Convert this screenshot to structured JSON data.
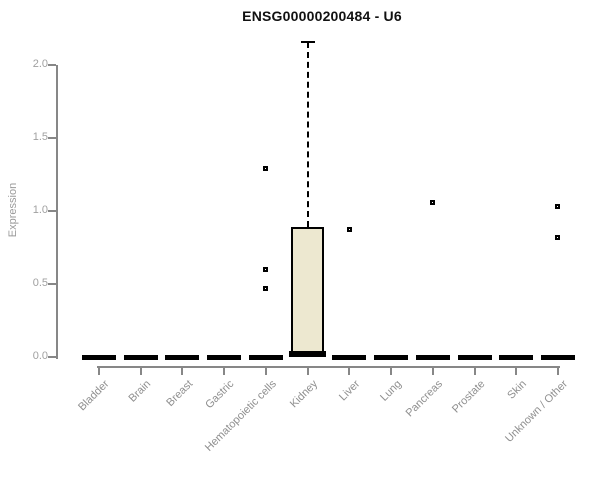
{
  "chart_data": {
    "type": "boxplot",
    "title": "ENSG00000200484 - U6",
    "xlabel": "",
    "ylabel": "Expression",
    "ylim": [
      0,
      2.2
    ],
    "yticks": [
      "0.0",
      "0.5",
      "1.0",
      "1.5",
      "2.0"
    ],
    "ytick_values": [
      0.0,
      0.5,
      1.0,
      1.5,
      2.0
    ],
    "grid": false,
    "legend": "none",
    "categories": [
      "Bladder",
      "Brain",
      "Breast",
      "Gastric",
      "Hematopoietic cells",
      "Kidney",
      "Liver",
      "Lung",
      "Pancreas",
      "Prostate",
      "Skin",
      "Unknown / Other"
    ],
    "boxes": [
      {
        "category": "Bladder",
        "min": 0,
        "q1": 0,
        "median": 0,
        "q3": 0,
        "max": 0,
        "outliers": []
      },
      {
        "category": "Brain",
        "min": 0,
        "q1": 0,
        "median": 0,
        "q3": 0,
        "max": 0,
        "outliers": []
      },
      {
        "category": "Breast",
        "min": 0,
        "q1": 0,
        "median": 0,
        "q3": 0,
        "max": 0,
        "outliers": []
      },
      {
        "category": "Gastric",
        "min": 0,
        "q1": 0,
        "median": 0,
        "q3": 0,
        "max": 0,
        "outliers": []
      },
      {
        "category": "Hematopoietic cells",
        "min": 0,
        "q1": 0,
        "median": 0,
        "q3": 0,
        "max": 0,
        "outliers": [
          1.29,
          0.6,
          0.47
        ]
      },
      {
        "category": "Kidney",
        "min": 0,
        "q1": 0,
        "median": 0.02,
        "q3": 0.89,
        "max": 2.16,
        "outliers": []
      },
      {
        "category": "Liver",
        "min": 0,
        "q1": 0,
        "median": 0,
        "q3": 0,
        "max": 0,
        "outliers": [
          0.87
        ]
      },
      {
        "category": "Lung",
        "min": 0,
        "q1": 0,
        "median": 0,
        "q3": 0,
        "max": 0,
        "outliers": []
      },
      {
        "category": "Pancreas",
        "min": 0,
        "q1": 0,
        "median": 0,
        "q3": 0,
        "max": 0,
        "outliers": [
          1.06
        ]
      },
      {
        "category": "Prostate",
        "min": 0,
        "q1": 0,
        "median": 0,
        "q3": 0,
        "max": 0,
        "outliers": []
      },
      {
        "category": "Skin",
        "min": 0,
        "q1": 0,
        "median": 0,
        "q3": 0,
        "max": 0,
        "outliers": []
      },
      {
        "category": "Unknown / Other",
        "min": 0,
        "q1": 0,
        "median": 0,
        "q3": 0,
        "max": 0,
        "outliers": [
          1.03,
          0.82
        ]
      }
    ],
    "colors": {
      "box_fill": "#EDE8D0",
      "box_border": "#000000",
      "axis": "#878787",
      "tick_label": "#a0a0a0",
      "category_label": "#8f8f8f",
      "title": "#111111"
    }
  }
}
